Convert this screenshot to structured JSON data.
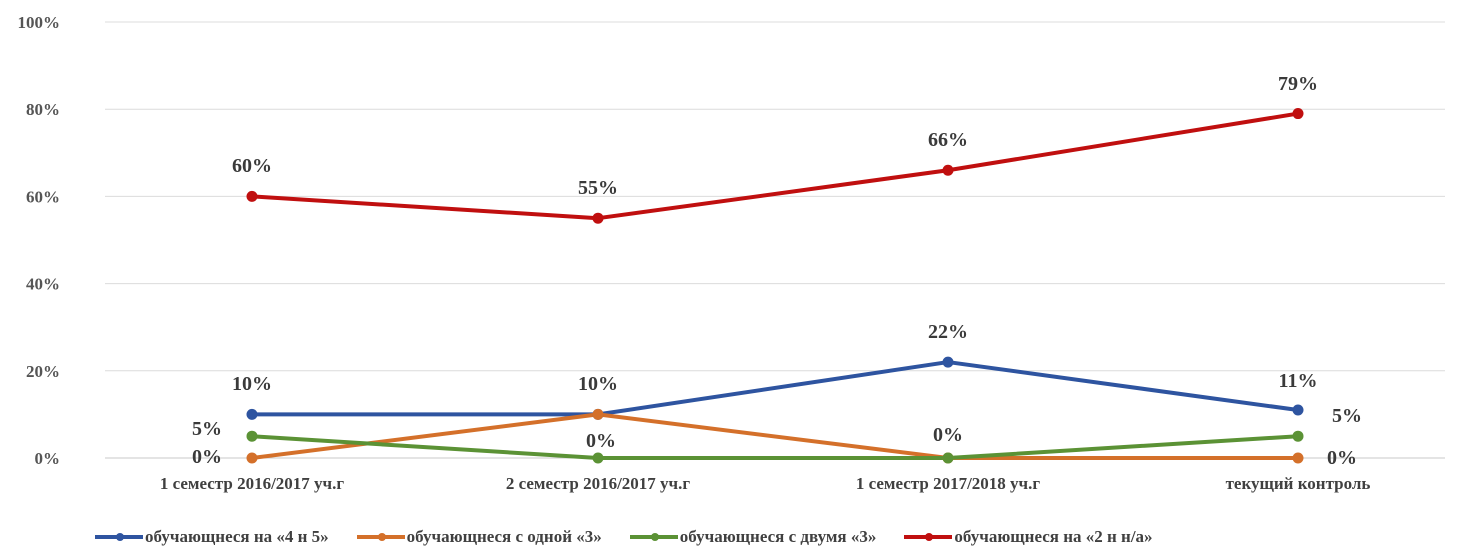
{
  "chart_data": {
    "type": "line",
    "categories": [
      "1 семестр 2016/2017 уч.г",
      "2 семестр 2016/2017 уч.г",
      "1 семестр 2017/2018 уч.г",
      "текущий контроль"
    ],
    "y_ticks": [
      "0%",
      "20%",
      "40%",
      "60%",
      "80%",
      "100%"
    ],
    "ylim": [
      0,
      100
    ],
    "grid": "horizontal",
    "legend_position": "bottom",
    "series": [
      {
        "name": "обучающнеся на «4 н 5»",
        "color": "#2e54a0",
        "values": [
          10,
          10,
          22,
          11
        ],
        "labels": [
          "10%",
          "10%",
          "22%",
          "11%"
        ]
      },
      {
        "name": "обучающнеся с одной «3»",
        "color": "#d4702a",
        "values": [
          0,
          10,
          0,
          0
        ],
        "labels": [
          "0%",
          "",
          "",
          "0%"
        ]
      },
      {
        "name": "обучающнеся с двумя «3»",
        "color": "#5b9235",
        "values": [
          5,
          0,
          0,
          5
        ],
        "labels": [
          "5%",
          "0%",
          "0%",
          "5%"
        ]
      },
      {
        "name": "обучающнеся на «2 н н/а»",
        "color": "#c00f0f",
        "values": [
          60,
          55,
          66,
          79
        ],
        "labels": [
          "60%",
          "55%",
          "66%",
          "79%"
        ]
      }
    ]
  }
}
